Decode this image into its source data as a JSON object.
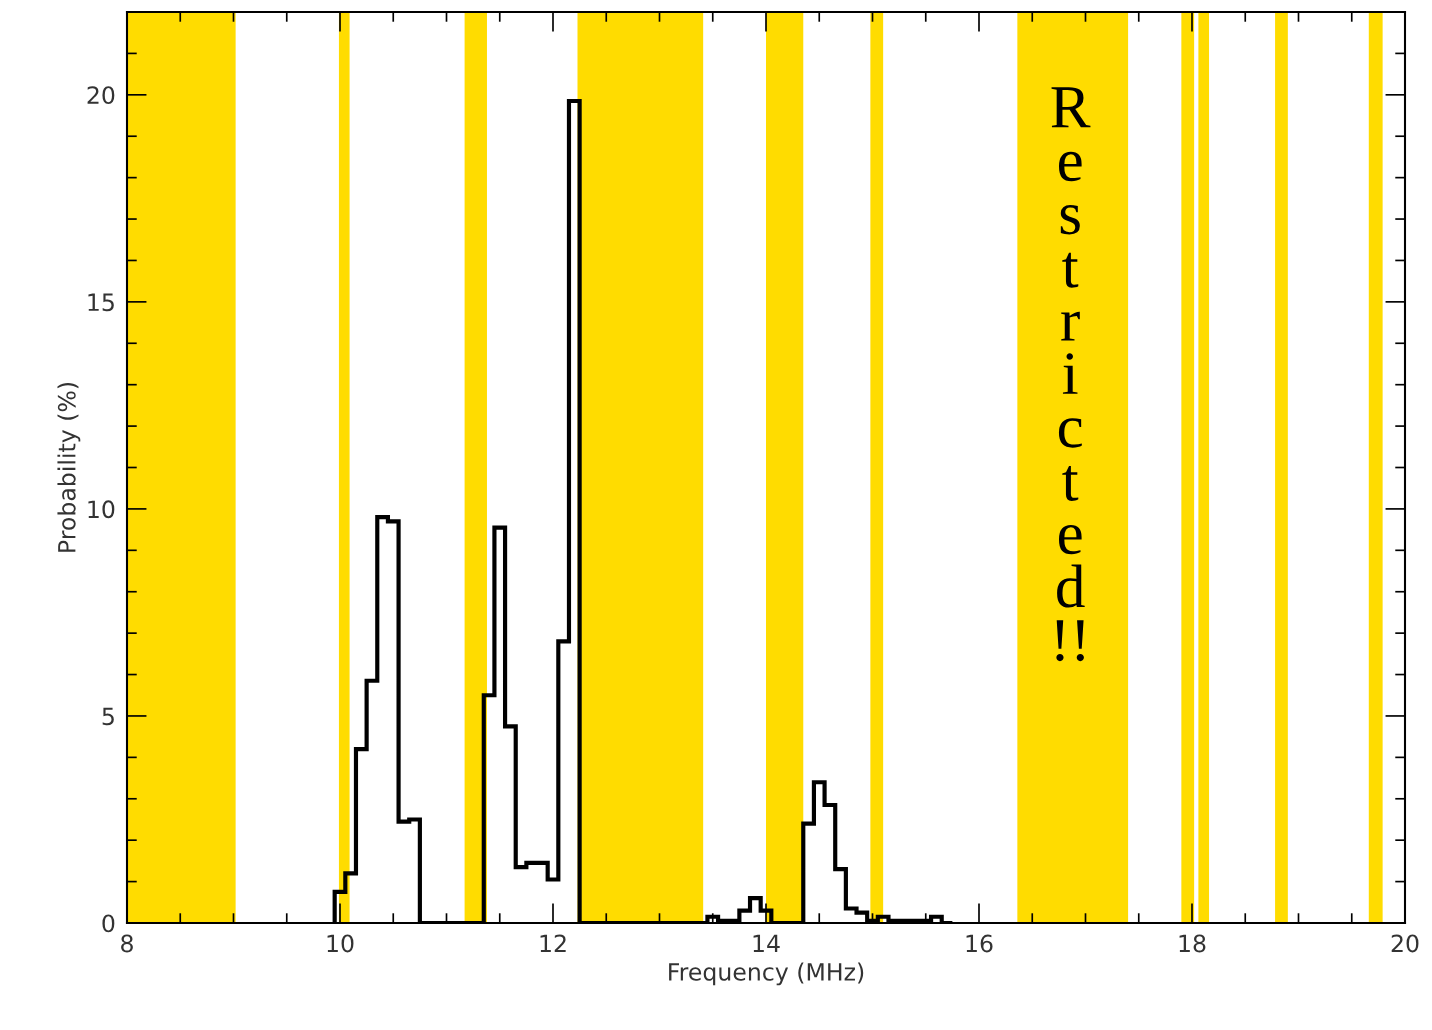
{
  "chart_data": {
    "type": "histogram",
    "xlabel": "Frequency (MHz)",
    "ylabel": "Probability (%)",
    "bins": [
      9.95,
      10.05,
      10.15,
      10.25,
      10.35,
      10.45,
      10.55,
      10.65,
      10.75,
      10.85,
      10.95,
      11.05,
      11.15,
      11.25,
      11.35,
      11.45,
      11.55,
      11.65,
      11.75,
      11.85,
      11.95,
      12.05,
      12.15,
      12.25,
      12.35,
      12.45,
      12.55,
      12.65,
      12.75,
      12.85,
      12.95,
      13.05,
      13.15,
      13.25,
      13.35,
      13.45,
      13.55,
      13.65,
      13.75,
      13.85,
      13.95,
      14.05,
      14.15,
      14.25,
      14.35,
      14.45,
      14.55,
      14.65,
      14.75,
      14.85,
      14.95,
      15.05,
      15.15,
      15.25,
      15.35,
      15.45,
      15.55,
      15.65,
      15.75
    ],
    "values": [
      0.75,
      1.2,
      4.2,
      5.85,
      9.8,
      9.7,
      2.45,
      2.5,
      0,
      0,
      0,
      0,
      0,
      0,
      5.5,
      9.55,
      4.75,
      1.35,
      1.45,
      1.45,
      1.05,
      6.8,
      19.85,
      0,
      0,
      0,
      0,
      0,
      0,
      0,
      0,
      0,
      0,
      0,
      0,
      0.15,
      0.05,
      0.05,
      0.3,
      0.6,
      0.3,
      0,
      0,
      0,
      2.4,
      3.4,
      2.85,
      1.3,
      0.35,
      0.25,
      0.05,
      0.15,
      0.05,
      0.05,
      0.05,
      0.05,
      0.15,
      0
    ],
    "color": "#000000",
    "xlim": [
      8,
      20
    ],
    "xticks": [
      8,
      10,
      12,
      14,
      16,
      18,
      20
    ],
    "ylim": [
      0,
      22
    ],
    "yticks": [
      0,
      5,
      10,
      15,
      20
    ],
    "grid": false,
    "bands": [
      {
        "axis": "x",
        "from": 8.0,
        "to": 9.02,
        "color": "#ffdc00"
      },
      {
        "axis": "x",
        "from": 9.99,
        "to": 10.09,
        "color": "#ffdc00"
      },
      {
        "axis": "x",
        "from": 11.17,
        "to": 11.38,
        "color": "#ffdc00"
      },
      {
        "axis": "x",
        "from": 12.23,
        "to": 13.41,
        "color": "#ffdc00"
      },
      {
        "axis": "x",
        "from": 14.0,
        "to": 14.35,
        "color": "#ffdc00"
      },
      {
        "axis": "x",
        "from": 14.98,
        "to": 15.1,
        "color": "#ffdc00"
      },
      {
        "axis": "x",
        "from": 16.36,
        "to": 17.4,
        "color": "#ffdc00"
      },
      {
        "axis": "x",
        "from": 17.9,
        "to": 18.02,
        "color": "#ffdc00"
      },
      {
        "axis": "x",
        "from": 18.06,
        "to": 18.16,
        "color": "#ffdc00"
      },
      {
        "axis": "x",
        "from": 18.78,
        "to": 18.9,
        "color": "#ffdc00"
      },
      {
        "axis": "x",
        "from": 19.66,
        "to": 19.79,
        "color": "#ffdc00"
      }
    ],
    "annotations": [
      "R\ne\ns\nt\nr\ni\nc\nt\ne\nd\n!!"
    ]
  }
}
